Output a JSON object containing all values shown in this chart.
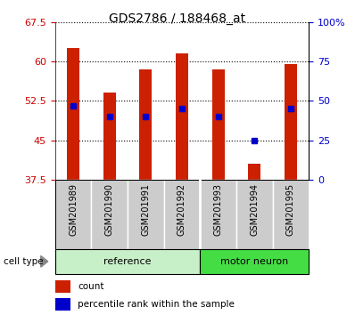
{
  "title": "GDS2786 / 188468_at",
  "samples": [
    "GSM201989",
    "GSM201990",
    "GSM201991",
    "GSM201992",
    "GSM201993",
    "GSM201994",
    "GSM201995"
  ],
  "bar_bottom": 37.5,
  "count_values": [
    62.5,
    54.0,
    58.5,
    61.5,
    58.5,
    40.5,
    59.5
  ],
  "percentile_values": [
    51.5,
    49.5,
    49.5,
    51.0,
    49.5,
    45.0,
    51.0
  ],
  "ymin": 37.5,
  "ymax": 67.5,
  "yticks": [
    37.5,
    45.0,
    52.5,
    60.0,
    67.5
  ],
  "ytick_labels": [
    "37.5",
    "45",
    "52.5",
    "60",
    "67.5"
  ],
  "right_yticks": [
    0,
    25,
    50,
    75,
    100
  ],
  "right_ytick_labels": [
    "0",
    "25",
    "50",
    "75",
    "100%"
  ],
  "bar_color": "#cc2000",
  "blue_color": "#0000cc",
  "group_colors_ref": "#c8f0c8",
  "group_colors_mn": "#44dd44",
  "group_labels": [
    "reference",
    "motor neuron"
  ],
  "tick_label_color_left": "#cc0000",
  "tick_label_color_right": "#0000cc",
  "bar_width": 0.35,
  "legend_labels": [
    "count",
    "percentile rank within the sample"
  ],
  "cell_type_label": "cell type",
  "xlabel_area_color": "#cccccc",
  "n_ref": 4,
  "n_mn": 3,
  "figsize": [
    3.98,
    3.54
  ],
  "dpi": 100
}
